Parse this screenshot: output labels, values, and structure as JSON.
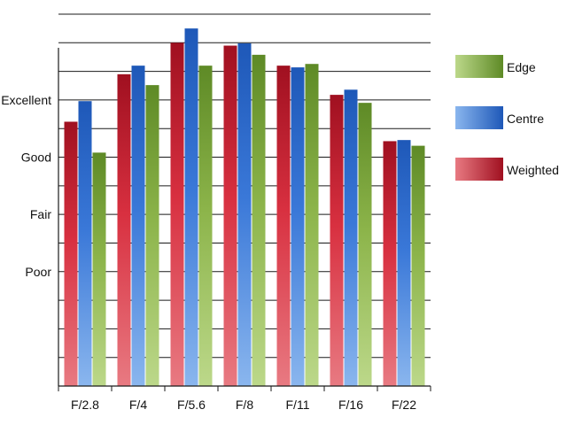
{
  "chart_data": {
    "type": "bar",
    "categories": [
      "F/2.8",
      "F/4",
      "F/5.6",
      "F/8",
      "F/11",
      "F/16",
      "F/22"
    ],
    "series": [
      {
        "name": "Weighted",
        "values": [
          3.62,
          4.45,
          5.0,
          4.95,
          4.6,
          4.09,
          3.28
        ]
      },
      {
        "name": "Centre",
        "values": [
          3.98,
          4.6,
          5.25,
          4.99,
          4.57,
          4.18,
          3.3
        ]
      },
      {
        "name": "Edge",
        "values": [
          3.08,
          4.26,
          4.6,
          4.79,
          4.63,
          3.95,
          3.2
        ]
      }
    ],
    "y_tick_labels": [
      {
        "value": 1,
        "label": "Poor"
      },
      {
        "value": 2,
        "label": "Fair"
      },
      {
        "value": 3,
        "label": "Good"
      },
      {
        "value": 4,
        "label": "Excellent"
      }
    ],
    "ylim": [
      -1,
      5.5
    ],
    "grid": true,
    "legend_position": "right",
    "legend_order": [
      "Edge",
      "Centre",
      "Weighted"
    ],
    "colors": {
      "Weighted": {
        "dark": "#a01020",
        "mid": "#d83040",
        "light": "#e87a82"
      },
      "Centre": {
        "dark": "#1e58b8",
        "mid": "#3a78d8",
        "light": "#8ab6ee"
      },
      "Edge": {
        "dark": "#5e8a26",
        "mid": "#8cb44a",
        "light": "#bcd88a"
      }
    }
  }
}
